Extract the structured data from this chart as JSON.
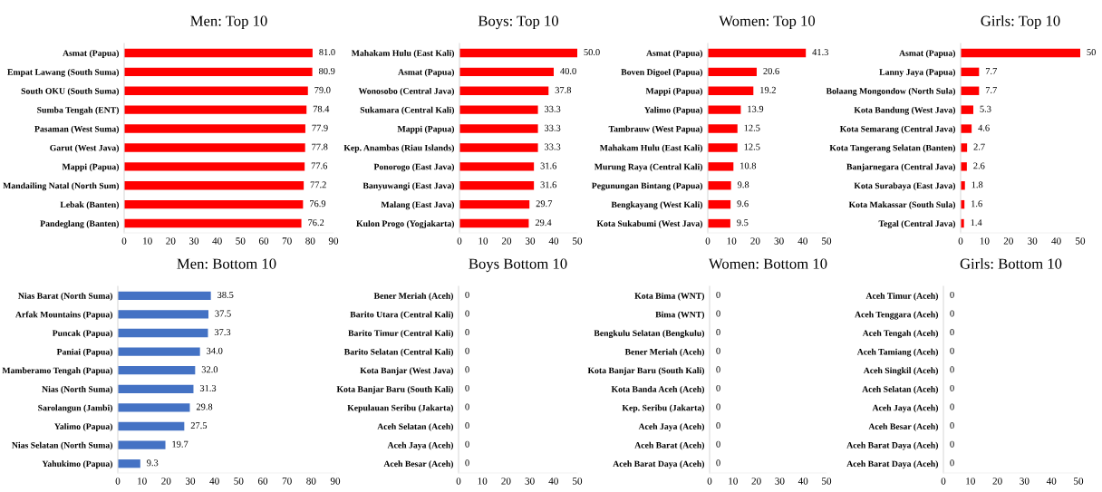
{
  "chart_data": [
    {
      "type": "bar",
      "orientation": "horizontal",
      "title": "Men: Top 10",
      "categories": [
        "Asmat (Papua)",
        "Empat Lawang (South Suma)",
        "South OKU (South Suma)",
        "Sumba Tengah (ENT)",
        "Pasaman (West Suma)",
        "Garut (West Java)",
        "Mappi (Papua)",
        "Mandailing Natal (North Sum)",
        "Lebak (Banten)",
        "Pandeglang (Banten)"
      ],
      "values": [
        81.0,
        80.9,
        79.0,
        78.4,
        77.9,
        77.8,
        77.6,
        77.2,
        76.9,
        76.2
      ],
      "value_labels": [
        "81.0",
        "80.9",
        "79.0",
        "78.4",
        "77.9",
        "77.8",
        "77.6",
        "77.2",
        "76.9",
        "76.2"
      ],
      "color": "#ff0000",
      "xlim": [
        0,
        90
      ],
      "xticks": [
        0,
        10,
        20,
        30,
        40,
        50,
        60,
        70,
        80,
        90
      ],
      "grid": false
    },
    {
      "type": "bar",
      "orientation": "horizontal",
      "title": "Boys: Top 10",
      "categories": [
        "Mahakam Hulu (East Kali)",
        "Asmat (Papua)",
        "Wonosobo (Central Java)",
        "Sukamara (Central Kali)",
        "Mappi (Papua)",
        "Kep. Anambas (Riau Islands)",
        "Ponorogo (East Java)",
        "Banyuwangi (East Java)",
        "Malang (East Java)",
        "Kulon Progo (Yogjakarta)"
      ],
      "values": [
        50.0,
        40.0,
        37.8,
        33.3,
        33.3,
        33.3,
        31.6,
        31.6,
        29.7,
        29.4
      ],
      "value_labels": [
        "50.0",
        "40.0",
        "37.8",
        "33.3",
        "33.3",
        "33.3",
        "31.6",
        "31.6",
        "29.7",
        "29.4"
      ],
      "color": "#ff0000",
      "xlim": [
        0,
        50
      ],
      "xticks": [
        0,
        10,
        20,
        30,
        40,
        50
      ],
      "grid": false
    },
    {
      "type": "bar",
      "orientation": "horizontal",
      "title": "Women: Top 10",
      "categories": [
        "Asmat (Papua)",
        "Boven Digoel (Papua)",
        "Mappi (Papua)",
        "Yalimo (Papua)",
        "Tambrauw (West Papua)",
        "Mahakam Hulu (East Kali)",
        "Murung Raya (Central Kali)",
        "Pegunungan Bintang (Papua)",
        "Bengkayang (West Kali)",
        "Kota Sukabumi (West Java)"
      ],
      "values": [
        41.3,
        20.6,
        19.2,
        13.9,
        12.5,
        12.5,
        10.8,
        9.8,
        9.6,
        9.5
      ],
      "value_labels": [
        "41.3",
        "20.6",
        "19.2",
        "13.9",
        "12.5",
        "12.5",
        "10.8",
        "9.8",
        "9.6",
        "9.5"
      ],
      "color": "#ff0000",
      "xlim": [
        0,
        50
      ],
      "xticks": [
        0,
        10,
        20,
        30,
        40,
        50
      ],
      "grid": false
    },
    {
      "type": "bar",
      "orientation": "horizontal",
      "title": "Girls: Top 10",
      "categories": [
        "Asmat (Papua)",
        "Lanny Jaya (Papua)",
        "Bolaang Mongondow (North Sula)",
        "Kota Bandung (West Java)",
        "Kota Semarang (Central Java)",
        "Kota Tangerang Selatan (Banten)",
        "Banjarnegara (Central Java)",
        "Kota Surabaya (East Java)",
        "Kota Makassar (South Sula)",
        "Tegal (Central Java)"
      ],
      "values": [
        50,
        7.7,
        7.7,
        5.3,
        4.6,
        2.7,
        2.6,
        1.8,
        1.6,
        1.4
      ],
      "value_labels": [
        "50",
        "7.7",
        "7.7",
        "5.3",
        "4.6",
        "2.7",
        "2.6",
        "1.8",
        "1.6",
        "1.4"
      ],
      "color": "#ff0000",
      "xlim": [
        0,
        50
      ],
      "xticks": [
        0,
        10,
        20,
        30,
        40,
        50
      ],
      "grid": false
    },
    {
      "type": "bar",
      "orientation": "horizontal",
      "title": "Men: Bottom 10",
      "categories": [
        "Nias Barat (North Suma)",
        "Arfak Mountains (Papua)",
        "Puncak (Papua)",
        "Paniai (Papua)",
        "Mamberamo Tengah (Papua)",
        "Nias (North Suma)",
        "Sarolangun (Jambi)",
        "Yalimo (Papua)",
        "Nias Selatan (North Suma)",
        "Yahukimo (Papua)"
      ],
      "values": [
        38.5,
        37.5,
        37.3,
        34.0,
        32.0,
        31.3,
        29.8,
        27.5,
        19.7,
        9.3
      ],
      "value_labels": [
        "38.5",
        "37.5",
        "37.3",
        "34.0",
        "32.0",
        "31.3",
        "29.8",
        "27.5",
        "19.7",
        "9.3"
      ],
      "color": "#4472c4",
      "xlim": [
        0,
        90
      ],
      "xticks": [
        0,
        10,
        20,
        30,
        40,
        50,
        60,
        70,
        80,
        90
      ],
      "grid": false
    },
    {
      "type": "bar",
      "orientation": "horizontal",
      "title": "Boys Bottom 10",
      "categories": [
        "Bener Meriah (Aceh)",
        "Barito Utara (Central Kali)",
        "Barito Timur (Central Kali)",
        "Barito Selatan (Central Kali)",
        "Kota Banjar (West Java)",
        "Kota Banjar Baru (South Kali)",
        "Kepulauan Seribu (Jakarta)",
        "Aceh Selatan (Aceh)",
        "Aceh Jaya (Aceh)",
        "Aceh Besar (Aceh)"
      ],
      "values": [
        0,
        0,
        0,
        0,
        0,
        0,
        0,
        0,
        0,
        0
      ],
      "value_labels": [
        "0",
        "0",
        "0",
        "0",
        "0",
        "0",
        "0",
        "0",
        "0",
        "0"
      ],
      "color": "#4472c4",
      "xlim": [
        0,
        50
      ],
      "xticks": [
        0,
        10,
        20,
        30,
        40,
        50
      ],
      "grid": false
    },
    {
      "type": "bar",
      "orientation": "horizontal",
      "title": "Women: Bottom 10",
      "categories": [
        "Kota Bima (WNT)",
        "Bima (WNT)",
        "Bengkulu Selatan (Bengkulu)",
        "Bener Meriah (Aceh)",
        "Kota Banjar Baru (South Kali)",
        "Kota Banda Aceh (Aceh)",
        "Kep. Seribu (Jakarta)",
        "Aceh Jaya (Aceh)",
        "Aceh Barat (Aceh)",
        "Aceh Barat Daya (Aceh)"
      ],
      "values": [
        0,
        0,
        0,
        0,
        0,
        0,
        0,
        0,
        0,
        0
      ],
      "value_labels": [
        "0",
        "0",
        "0",
        "0",
        "0",
        "0",
        "0",
        "0",
        "0",
        "0"
      ],
      "color": "#4472c4",
      "xlim": [
        0,
        50
      ],
      "xticks": [
        0,
        10,
        20,
        30,
        40,
        50
      ],
      "grid": false
    },
    {
      "type": "bar",
      "orientation": "horizontal",
      "title": "Girls: Bottom 10",
      "categories": [
        "Aceh Timur (Aceh)",
        "Aceh Tenggara (Aceh)",
        "Aceh Tengah (Aceh)",
        "Aceh Tamiang (Aceh)",
        "Aceh Singkil (Aceh)",
        "Aceh Selatan (Aceh)",
        "Aceh Jaya (Aceh)",
        "Aceh Besar (Aceh)",
        "Aceh Barat Daya (Aceh)",
        "Aceh Barat Daya (Aceh)"
      ],
      "values": [
        0,
        0,
        0,
        0,
        0,
        0,
        0,
        0,
        0,
        0
      ],
      "value_labels": [
        "0",
        "0",
        "0",
        "0",
        "0",
        "0",
        "0",
        "0",
        "0",
        "0"
      ],
      "color": "#4472c4",
      "xlim": [
        0,
        50
      ],
      "xticks": [
        0,
        10,
        20,
        30,
        40,
        50
      ],
      "grid": false
    }
  ]
}
